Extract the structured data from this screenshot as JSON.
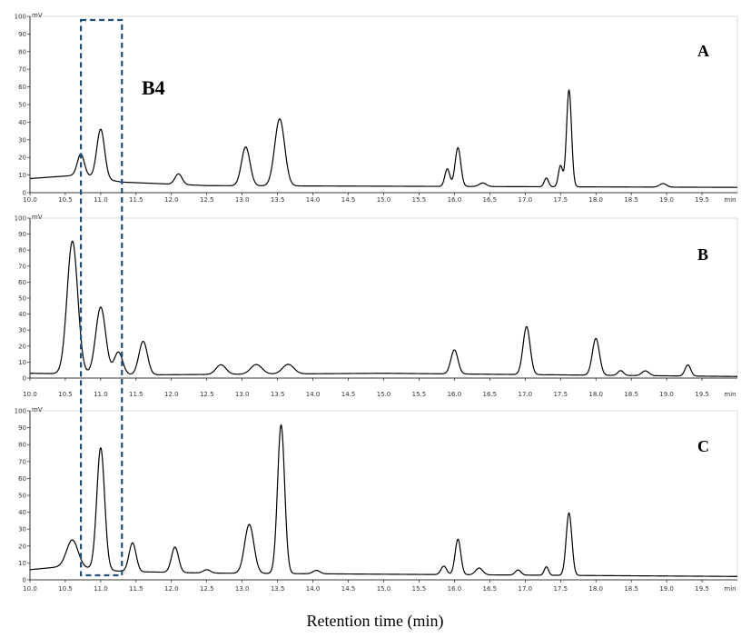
{
  "chart_data": {
    "type": "line",
    "xlabel": "Retention time (min)",
    "x_unit": "min",
    "y_unit": "mV",
    "xlim": [
      10.0,
      20.0
    ],
    "ylim": [
      0,
      100
    ],
    "x_ticks": [
      "10.0",
      "10.5",
      "11.0",
      "11.5",
      "12.0",
      "12.5",
      "13.0",
      "13.5",
      "14.0",
      "14.5",
      "15.0",
      "15.5",
      "16.0",
      "16.5",
      "17.0",
      "17.5",
      "18.0",
      "18.5",
      "19.0",
      "19.5"
    ],
    "y_ticks": [
      "0",
      "10",
      "20",
      "30",
      "40",
      "50",
      "60",
      "70",
      "80",
      "90",
      "100"
    ],
    "annotation": {
      "label": "B4",
      "x_range": [
        10.72,
        11.3
      ]
    },
    "series": [
      {
        "name": "A",
        "baseline": [
          [
            10.0,
            8
          ],
          [
            10.7,
            10
          ],
          [
            11.3,
            6
          ],
          [
            12.5,
            4
          ],
          [
            20.0,
            3
          ]
        ],
        "peaks": [
          [
            10.72,
            12,
            0.05
          ],
          [
            11.0,
            28,
            0.055
          ],
          [
            12.1,
            6,
            0.05
          ],
          [
            13.05,
            22,
            0.06
          ],
          [
            13.53,
            38,
            0.07
          ],
          [
            15.9,
            10,
            0.035
          ],
          [
            16.05,
            22,
            0.04
          ],
          [
            16.4,
            2,
            0.05
          ],
          [
            17.3,
            5,
            0.03
          ],
          [
            17.5,
            12,
            0.03
          ],
          [
            17.62,
            55,
            0.035
          ],
          [
            18.95,
            2,
            0.05
          ]
        ]
      },
      {
        "name": "B",
        "baseline": [
          [
            10.0,
            3
          ],
          [
            11.6,
            2
          ],
          [
            15.0,
            3
          ],
          [
            20.0,
            1
          ]
        ],
        "peaks": [
          [
            10.6,
            83,
            0.075
          ],
          [
            11.0,
            42,
            0.07
          ],
          [
            11.25,
            14,
            0.06
          ],
          [
            11.6,
            21,
            0.06
          ],
          [
            12.7,
            6,
            0.07
          ],
          [
            13.2,
            6,
            0.08
          ],
          [
            13.65,
            6,
            0.08
          ],
          [
            16.0,
            15,
            0.05
          ],
          [
            17.02,
            30,
            0.05
          ],
          [
            18.0,
            23,
            0.05
          ],
          [
            18.35,
            3,
            0.04
          ],
          [
            18.7,
            3,
            0.05
          ],
          [
            19.3,
            7,
            0.04
          ]
        ]
      },
      {
        "name": "C",
        "baseline": [
          [
            10.0,
            6
          ],
          [
            10.5,
            8
          ],
          [
            11.3,
            5
          ],
          [
            12.5,
            4
          ],
          [
            20.0,
            2
          ]
        ],
        "peaks": [
          [
            10.6,
            16,
            0.08
          ],
          [
            11.0,
            72,
            0.055
          ],
          [
            11.45,
            17,
            0.05
          ],
          [
            12.05,
            15,
            0.05
          ],
          [
            12.5,
            2,
            0.05
          ],
          [
            13.1,
            29,
            0.065
          ],
          [
            13.55,
            88,
            0.05
          ],
          [
            14.05,
            2,
            0.05
          ],
          [
            15.85,
            5,
            0.04
          ],
          [
            16.05,
            21,
            0.04
          ],
          [
            16.35,
            4,
            0.05
          ],
          [
            16.9,
            3,
            0.04
          ],
          [
            17.3,
            5,
            0.03
          ],
          [
            17.62,
            37,
            0.04
          ]
        ]
      }
    ]
  }
}
